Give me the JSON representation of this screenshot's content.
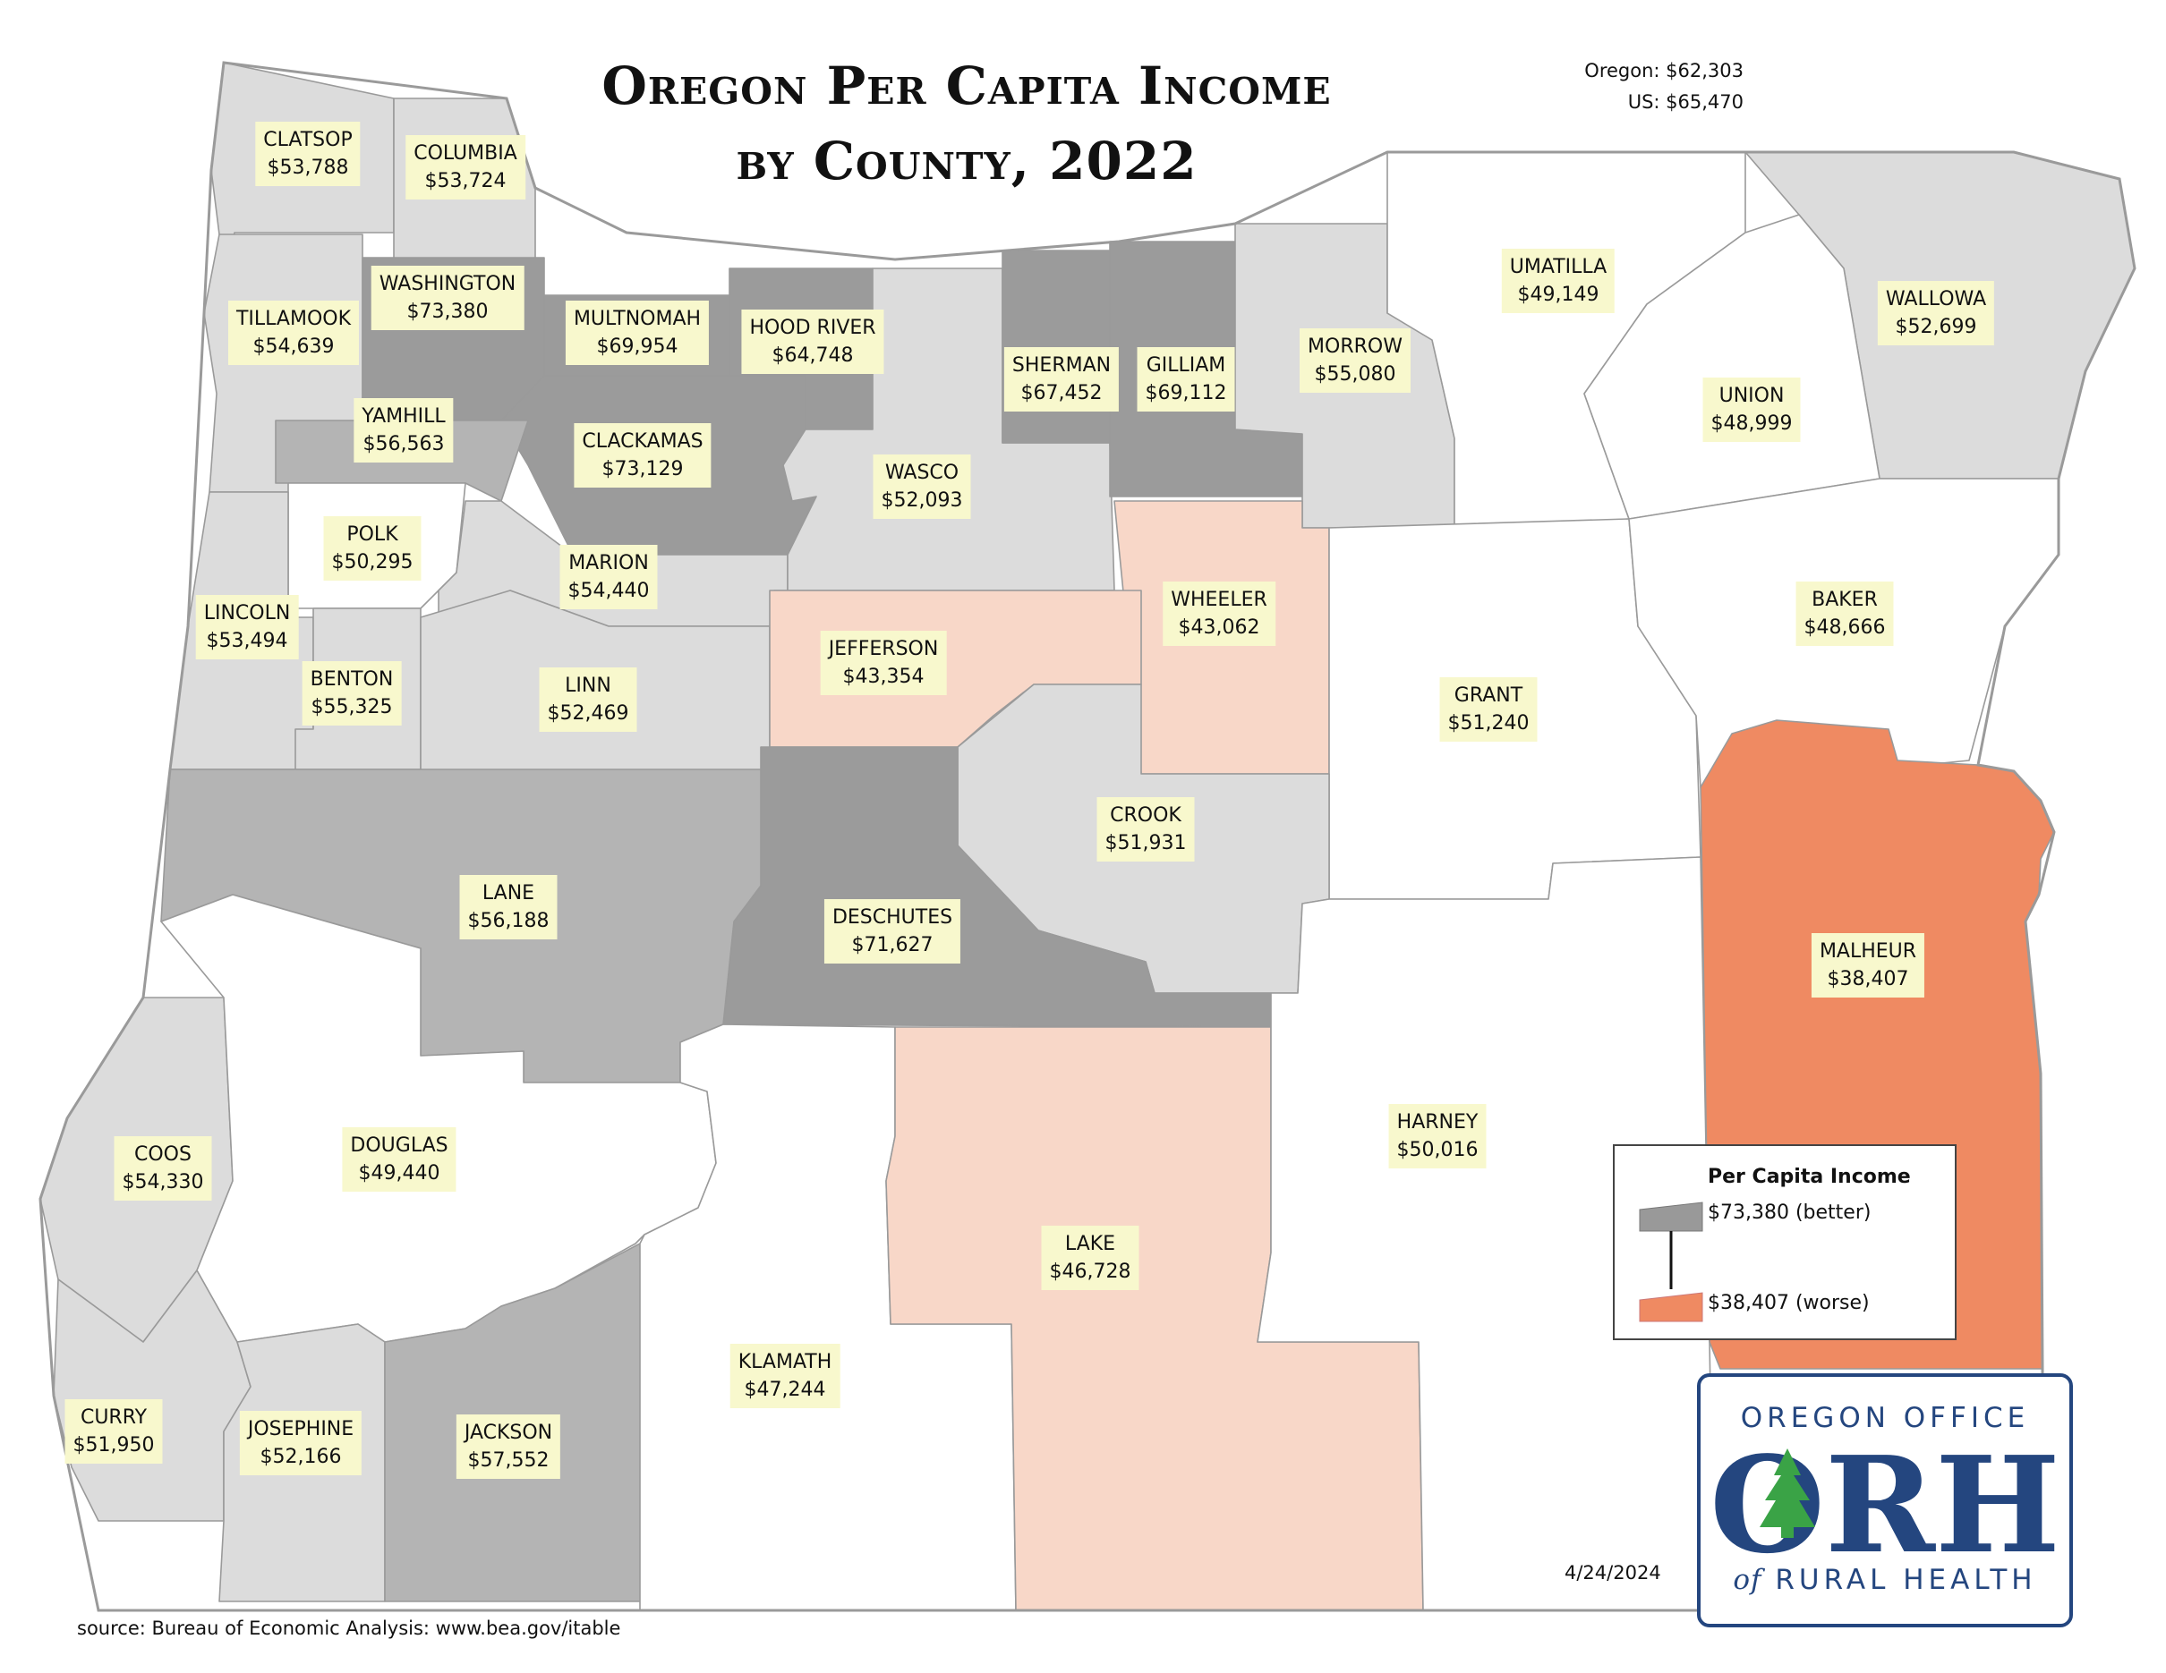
{
  "title_line1": "Oregon Per Capita Income",
  "title_line2": "by County, 2022",
  "state_total": "Oregon: $62,303",
  "us_total": "US: $65,470",
  "date": "4/24/2024",
  "source": "source: Bureau of Economic Analysis: www.bea.gov/itable",
  "legend": {
    "title": "Per Capita Income",
    "high_label": "$73,380 (better)",
    "low_label": "$38,407 (worse)",
    "high_color": "#999999",
    "low_color": "#ef8a62"
  },
  "color_scale": {
    "white": "#ffffff",
    "gray1": "#dcdcdc",
    "gray2": "#b4b4b4",
    "gray3": "#9b9b9b",
    "peach": "#f8d7c8",
    "orange": "#ef8a62",
    "border": "#9a9a9a"
  },
  "logo": {
    "line1": "OREGON OFFICE",
    "initials": "ORH",
    "line3_prefix": "of",
    "line3": "RURAL HEALTH",
    "color": "#24467f",
    "tree_color": "#3aa346"
  },
  "counties": [
    {
      "name": "CLATSOP",
      "value": "$53,788"
    },
    {
      "name": "COLUMBIA",
      "value": "$53,724"
    },
    {
      "name": "WASHINGTON",
      "value": "$73,380"
    },
    {
      "name": "TILLAMOOK",
      "value": "$54,639"
    },
    {
      "name": "MULTNOMAH",
      "value": "$69,954"
    },
    {
      "name": "HOOD RIVER",
      "value": "$64,748"
    },
    {
      "name": "SHERMAN",
      "value": "$67,452"
    },
    {
      "name": "GILLIAM",
      "value": "$69,112"
    },
    {
      "name": "MORROW",
      "value": "$55,080"
    },
    {
      "name": "UMATILLA",
      "value": "$49,149"
    },
    {
      "name": "WALLOWA",
      "value": "$52,699"
    },
    {
      "name": "UNION",
      "value": "$48,999"
    },
    {
      "name": "YAMHILL",
      "value": "$56,563"
    },
    {
      "name": "CLACKAMAS",
      "value": "$73,129"
    },
    {
      "name": "WASCO",
      "value": "$52,093"
    },
    {
      "name": "POLK",
      "value": "$50,295"
    },
    {
      "name": "MARION",
      "value": "$54,440"
    },
    {
      "name": "LINCOLN",
      "value": "$53,494"
    },
    {
      "name": "WHEELER",
      "value": "$43,062"
    },
    {
      "name": "BAKER",
      "value": "$48,666"
    },
    {
      "name": "JEFFERSON",
      "value": "$43,354"
    },
    {
      "name": "BENTON",
      "value": "$55,325"
    },
    {
      "name": "LINN",
      "value": "$52,469"
    },
    {
      "name": "GRANT",
      "value": "$51,240"
    },
    {
      "name": "CROOK",
      "value": "$51,931"
    },
    {
      "name": "LANE",
      "value": "$56,188"
    },
    {
      "name": "DESCHUTES",
      "value": "$71,627"
    },
    {
      "name": "MALHEUR",
      "value": "$38,407"
    },
    {
      "name": "HARNEY",
      "value": "$50,016"
    },
    {
      "name": "COOS",
      "value": "$54,330"
    },
    {
      "name": "DOUGLAS",
      "value": "$49,440"
    },
    {
      "name": "LAKE",
      "value": "$46,728"
    },
    {
      "name": "KLAMATH",
      "value": "$47,244"
    },
    {
      "name": "CURRY",
      "value": "$51,950"
    },
    {
      "name": "JOSEPHINE",
      "value": "$52,166"
    },
    {
      "name": "JACKSON",
      "value": "$57,552"
    }
  ]
}
